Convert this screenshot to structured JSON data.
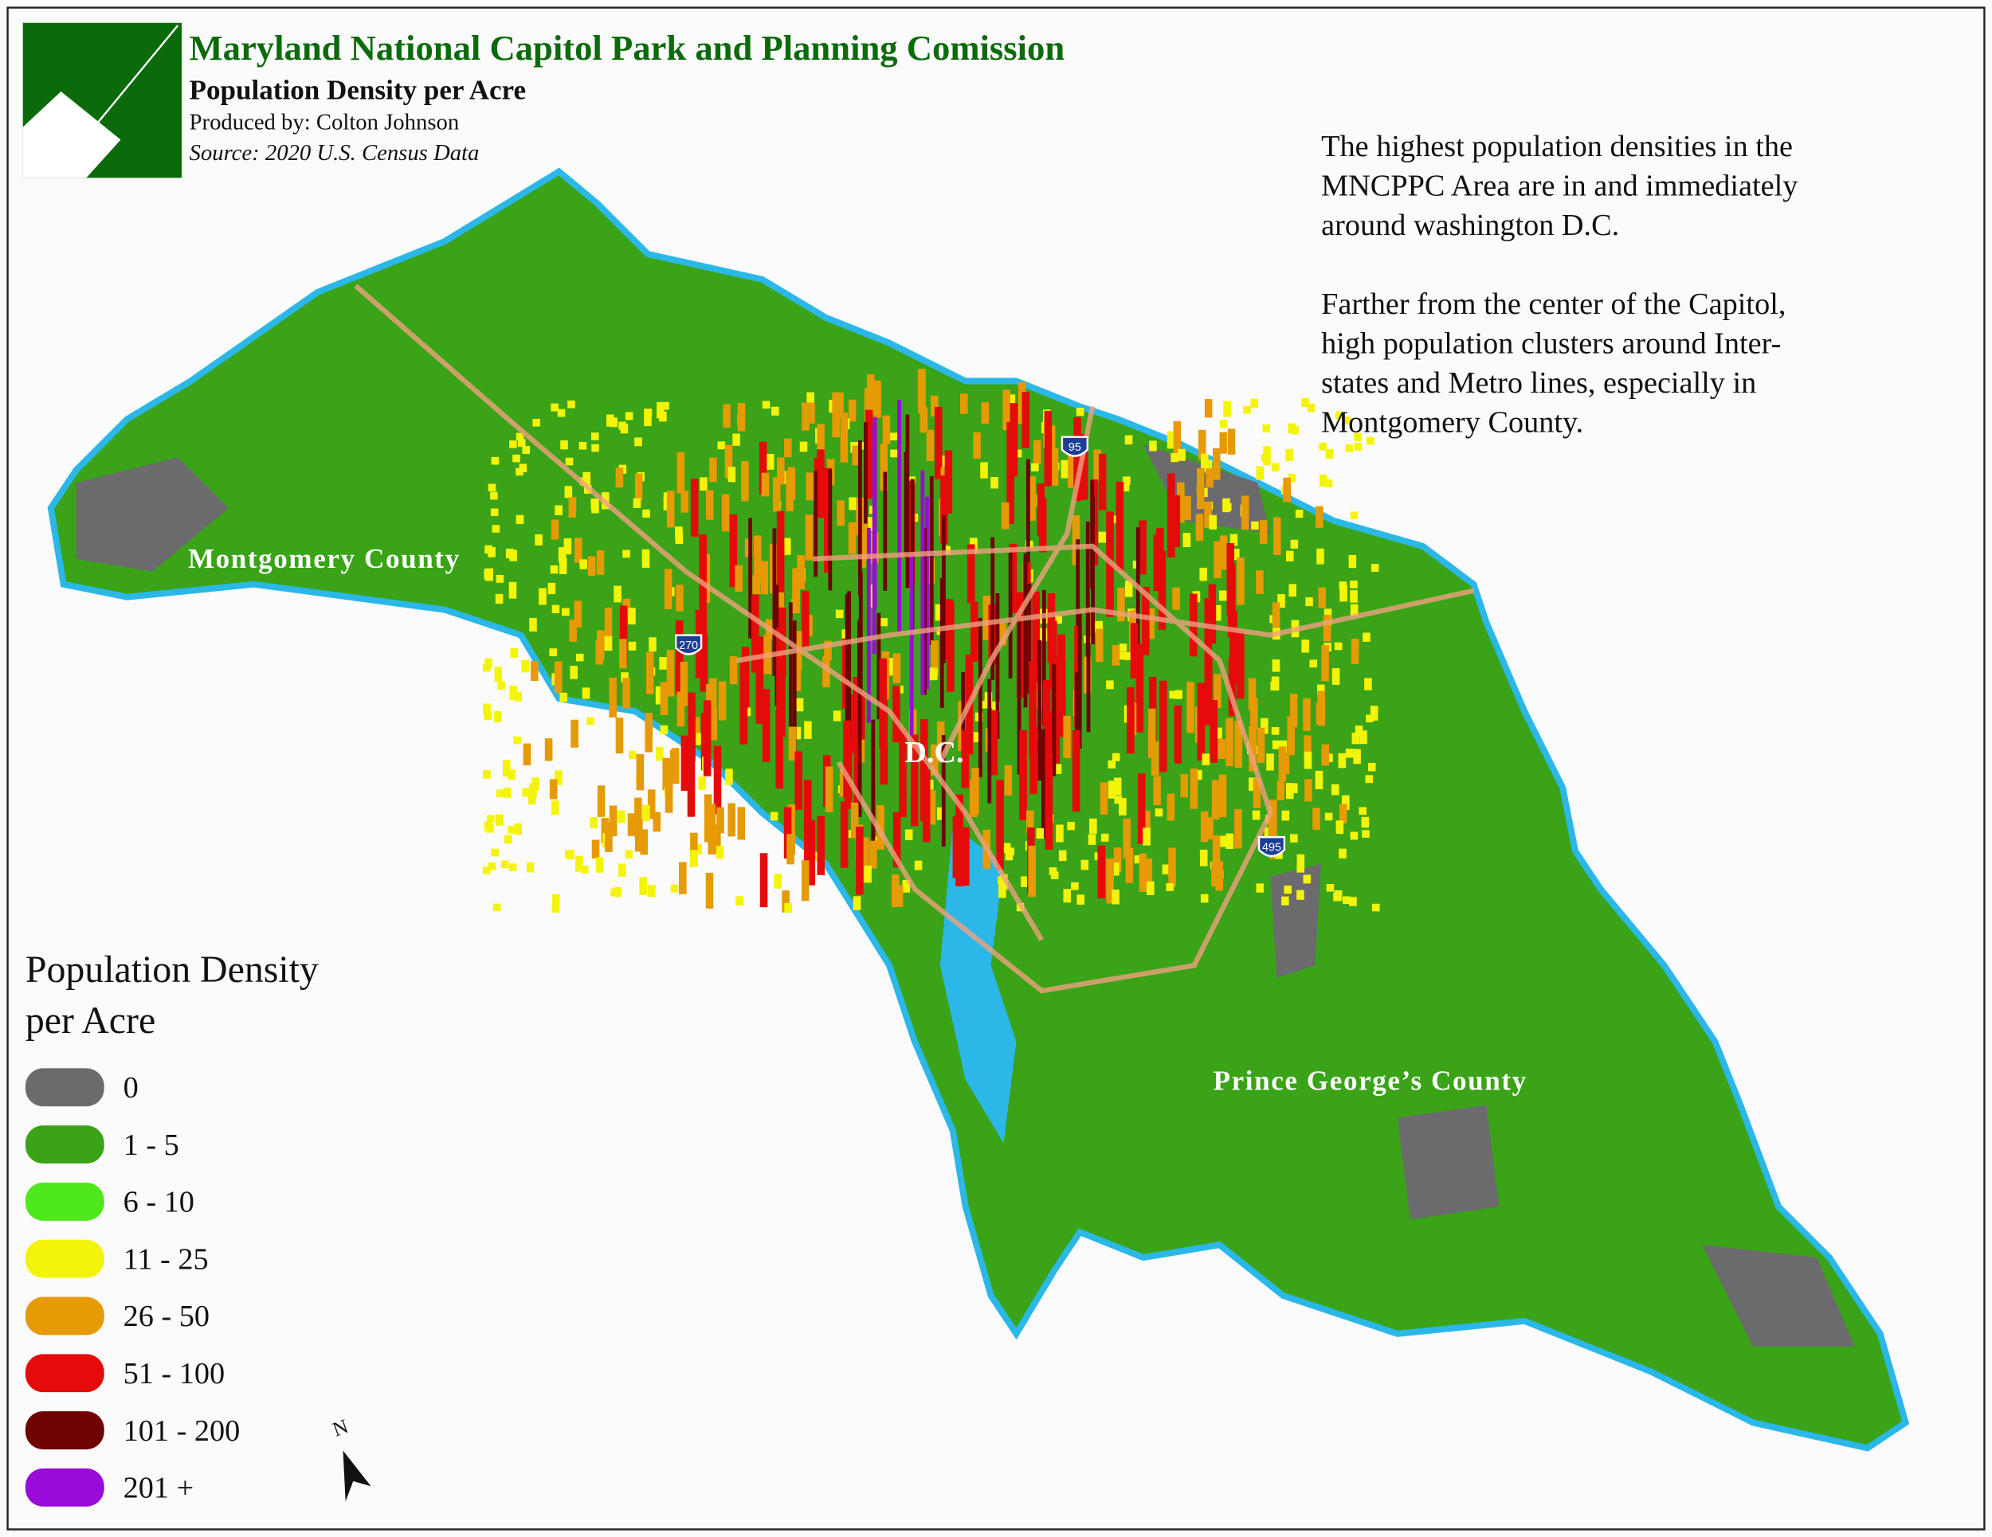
{
  "header": {
    "title": "Maryland National Capitol Park and Planning Comission",
    "subtitle": "Population Density per Acre",
    "produced_by": "Produced by: Colton Johnson",
    "source": "Source: 2020 U.S. Census Data"
  },
  "description": {
    "paragraphs": [
      [
        "The highest population densities in the",
        "MNCPPC Area are in and immediately",
        "around washington D.C."
      ],
      [
        "Farther from the center of the Capitol,",
        "high population clusters around Inter-",
        "states and Metro lines, especially in",
        "Montgomery County."
      ]
    ]
  },
  "map": {
    "labels": [
      "Montgomery County",
      "D.C.",
      "Prince George’s County"
    ],
    "shields": [
      "95",
      "270",
      "495"
    ]
  },
  "legend": {
    "title": [
      "Population Density",
      "per Acre"
    ],
    "items": [
      {
        "label": "0",
        "color": "#6b6b6d"
      },
      {
        "label": "1 - 5",
        "color": "#3aa317"
      },
      {
        "label": "6 - 10",
        "color": "#4fe81c"
      },
      {
        "label": "11 - 25",
        "color": "#f4f40a"
      },
      {
        "label": "26 - 50",
        "color": "#e59a06"
      },
      {
        "label": "51 - 100",
        "color": "#e50b0b"
      },
      {
        "label": "101 - 200",
        "color": "#6e0202"
      },
      {
        "label": "201 +",
        "color": "#9a0ad8"
      }
    ]
  },
  "north_arrow": "N"
}
